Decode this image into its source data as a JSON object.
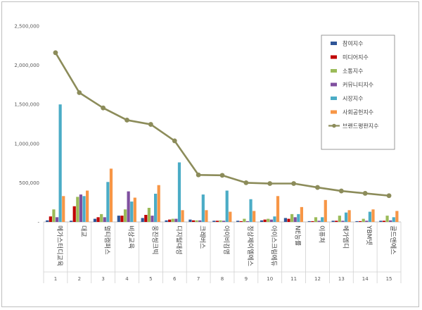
{
  "chart_data": {
    "type": "bar",
    "title": "",
    "xlabel": "",
    "ylabel": "",
    "ylim": [
      0,
      2500000
    ],
    "yticks": [
      "-",
      "500,000",
      "1,000,000",
      "1,500,000",
      "2,000,000",
      "2,500,000"
    ],
    "ytick_values": [
      0,
      500000,
      1000000,
      1500000,
      2000000,
      2500000
    ],
    "grid": false,
    "legend_position": "right",
    "categories": [
      "메가스터디교육",
      "대교",
      "멀티캠퍼스",
      "비상교육",
      "웅진씽크빅",
      "디지털대성",
      "크레버스",
      "아이비김영",
      "정상제이엘에스",
      "아이스크림에듀",
      "NE능률",
      "이퓨쳐",
      "메가엠디",
      "YBM넷",
      "골드앤에스"
    ],
    "indices": [
      "1",
      "2",
      "3",
      "4",
      "5",
      "6",
      "7",
      "8",
      "9",
      "10",
      "11",
      "12",
      "13",
      "14",
      "15"
    ],
    "series": [
      {
        "name": "참여지수",
        "color": "#2f5597",
        "values": [
          20000,
          15000,
          40000,
          80000,
          50000,
          20000,
          30000,
          15000,
          15000,
          20000,
          50000,
          10000,
          15000,
          10000,
          15000
        ]
      },
      {
        "name": "미디어지수",
        "color": "#c00000",
        "values": [
          70000,
          200000,
          60000,
          80000,
          90000,
          30000,
          20000,
          15000,
          10000,
          30000,
          40000,
          10000,
          15000,
          10000,
          15000
        ]
      },
      {
        "name": "소통지수",
        "color": "#9bbb59",
        "values": [
          160000,
          320000,
          100000,
          160000,
          180000,
          40000,
          20000,
          20000,
          40000,
          40000,
          100000,
          60000,
          80000,
          40000,
          80000
        ]
      },
      {
        "name": "커뮤니티지수",
        "color": "#7f4f9f",
        "values": [
          60000,
          350000,
          60000,
          390000,
          80000,
          40000,
          20000,
          15000,
          10000,
          30000,
          60000,
          15000,
          15000,
          15000,
          20000
        ]
      },
      {
        "name": "시장지수",
        "color": "#4bacc6",
        "values": [
          1500000,
          330000,
          510000,
          260000,
          360000,
          760000,
          350000,
          400000,
          290000,
          70000,
          100000,
          60000,
          120000,
          130000,
          60000
        ]
      },
      {
        "name": "사회공헌지수",
        "color": "#f79646",
        "values": [
          330000,
          400000,
          680000,
          310000,
          470000,
          150000,
          150000,
          130000,
          140000,
          330000,
          190000,
          280000,
          150000,
          160000,
          140000
        ]
      }
    ],
    "line_series": {
      "name": "브랜드평판지수",
      "color": "#8c8c5a",
      "values": [
        2160000,
        1650000,
        1455000,
        1300000,
        1245000,
        1035000,
        600000,
        595000,
        500000,
        490000,
        490000,
        440000,
        395000,
        365000,
        335000
      ]
    }
  }
}
